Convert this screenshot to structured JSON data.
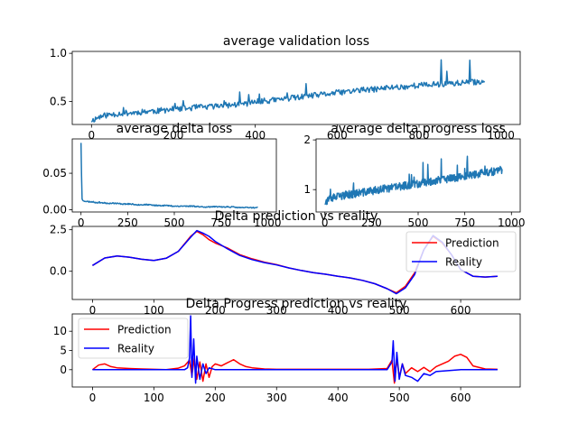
{
  "chart_data": [
    {
      "type": "line",
      "title": "average validation loss",
      "xlabel": "",
      "ylabel": "",
      "xlim": [
        -47,
        1047
      ],
      "ylim": [
        0.26,
        1.02
      ],
      "xticks": [
        0,
        200,
        400,
        600,
        800,
        1000
      ],
      "yticks": [
        0.5,
        1.0
      ],
      "ytick_labels": [
        "0.5",
        "1.0"
      ],
      "legend": null,
      "grid": false,
      "series": [
        {
          "color": "#1f77b4",
          "x": [
            0,
            20,
            40,
            60,
            80,
            100,
            120,
            140,
            160,
            180,
            200,
            220,
            240,
            260,
            280,
            300,
            320,
            340,
            360,
            380,
            400,
            420,
            440,
            460,
            480,
            500,
            520,
            540,
            560,
            580,
            600,
            620,
            640,
            660,
            680,
            700,
            720,
            740,
            760,
            780,
            800,
            820,
            840,
            860,
            880,
            900,
            920,
            940,
            960
          ],
          "y": [
            0.3,
            0.34,
            0.36,
            0.37,
            0.38,
            0.38,
            0.39,
            0.4,
            0.4,
            0.41,
            0.42,
            0.42,
            0.43,
            0.44,
            0.44,
            0.45,
            0.46,
            0.46,
            0.47,
            0.48,
            0.49,
            0.5,
            0.51,
            0.52,
            0.53,
            0.54,
            0.55,
            0.56,
            0.57,
            0.58,
            0.59,
            0.6,
            0.61,
            0.62,
            0.62,
            0.63,
            0.64,
            0.65,
            0.65,
            0.66,
            0.67,
            0.67,
            0.68,
            0.68,
            0.69,
            0.69,
            0.7,
            0.7,
            0.71
          ]
        }
      ]
    },
    {
      "type": "line",
      "title": "average delta loss",
      "xlabel": "",
      "ylabel": "",
      "xlim": [
        -47,
        1047
      ],
      "ylim": [
        -0.003,
        0.097
      ],
      "xticks": [
        0,
        250,
        500,
        750,
        1000
      ],
      "yticks": [
        0.0,
        0.05
      ],
      "ytick_labels": [
        "0.00",
        "0.05"
      ],
      "legend": null,
      "grid": false,
      "series": [
        {
          "color": "#1f77b4",
          "x": [
            0,
            5,
            10,
            20,
            40,
            60,
            80,
            100,
            140,
            180,
            220,
            260,
            300,
            350,
            400,
            450,
            500,
            550,
            600,
            650,
            700,
            750,
            800,
            850,
            900,
            950
          ],
          "y": [
            0.092,
            0.015,
            0.013,
            0.012,
            0.011,
            0.011,
            0.01,
            0.01,
            0.009,
            0.009,
            0.008,
            0.008,
            0.007,
            0.007,
            0.006,
            0.006,
            0.005,
            0.005,
            0.005,
            0.004,
            0.004,
            0.004,
            0.004,
            0.003,
            0.003,
            0.003
          ]
        }
      ]
    },
    {
      "type": "line",
      "title": "average delta progress loss",
      "xlabel": "",
      "ylabel": "",
      "xlim": [
        -47,
        1047
      ],
      "ylim": [
        0.55,
        2.02
      ],
      "xticks": [
        0,
        250,
        500,
        750,
        1000
      ],
      "yticks": [
        1,
        2
      ],
      "ytick_labels": [
        "1",
        "2"
      ],
      "legend": null,
      "grid": false,
      "series": [
        {
          "color": "#1f77b4",
          "x": [
            0,
            25,
            50,
            75,
            100,
            125,
            150,
            175,
            200,
            225,
            250,
            275,
            300,
            325,
            350,
            375,
            400,
            425,
            450,
            475,
            500,
            525,
            550,
            575,
            600,
            625,
            650,
            675,
            700,
            725,
            750,
            775,
            800,
            825,
            850,
            875,
            900,
            925,
            950
          ],
          "y": [
            0.75,
            0.8,
            0.84,
            0.86,
            0.88,
            0.9,
            0.91,
            0.93,
            0.94,
            0.96,
            0.97,
            0.99,
            1.0,
            1.02,
            1.03,
            1.05,
            1.06,
            1.08,
            1.09,
            1.11,
            1.12,
            1.14,
            1.15,
            1.17,
            1.18,
            1.2,
            1.21,
            1.23,
            1.24,
            1.26,
            1.27,
            1.29,
            1.3,
            1.32,
            1.33,
            1.35,
            1.36,
            1.38,
            1.4
          ]
        }
      ]
    },
    {
      "type": "line",
      "title": "Delta prediction vs reality",
      "xlabel": "",
      "ylabel": "",
      "xlim": [
        -33,
        697
      ],
      "ylim": [
        -1.7,
        2.7
      ],
      "xticks": [
        0,
        100,
        200,
        300,
        400,
        500,
        600
      ],
      "yticks": [
        0.0,
        2.5
      ],
      "ytick_labels": [
        "0.0",
        "2.5"
      ],
      "legend": {
        "placement": "upper right",
        "entries": [
          "Prediction",
          "Reality"
        ]
      },
      "grid": false,
      "series": [
        {
          "name": "Prediction",
          "color": "#ff0000",
          "x": [
            0,
            20,
            40,
            60,
            80,
            100,
            120,
            140,
            160,
            170,
            180,
            190,
            200,
            220,
            240,
            260,
            280,
            300,
            320,
            340,
            360,
            380,
            400,
            420,
            440,
            460,
            480,
            495,
            510,
            525,
            540,
            555,
            570,
            585,
            600,
            620,
            640,
            660
          ],
          "y": [
            0.35,
            0.8,
            0.92,
            0.85,
            0.72,
            0.65,
            0.78,
            1.2,
            2.1,
            2.4,
            2.2,
            1.9,
            1.7,
            1.4,
            1.0,
            0.75,
            0.55,
            0.4,
            0.2,
            0.05,
            -0.08,
            -0.18,
            -0.3,
            -0.4,
            -0.55,
            -0.75,
            -1.05,
            -1.3,
            -0.9,
            -0.1,
            1.3,
            2.1,
            1.7,
            1.0,
            0.1,
            -0.3,
            -0.35,
            -0.3
          ]
        },
        {
          "name": "Reality",
          "color": "#0000ff",
          "x": [
            0,
            20,
            40,
            60,
            80,
            100,
            120,
            140,
            160,
            170,
            180,
            190,
            200,
            220,
            240,
            260,
            280,
            300,
            320,
            340,
            360,
            380,
            400,
            420,
            440,
            460,
            480,
            495,
            510,
            525,
            540,
            555,
            570,
            585,
            600,
            620,
            640,
            660
          ],
          "y": [
            0.35,
            0.8,
            0.92,
            0.85,
            0.72,
            0.65,
            0.78,
            1.2,
            2.05,
            2.45,
            2.3,
            2.1,
            1.8,
            1.35,
            0.95,
            0.7,
            0.52,
            0.38,
            0.2,
            0.05,
            -0.08,
            -0.18,
            -0.3,
            -0.4,
            -0.55,
            -0.75,
            -1.05,
            -1.35,
            -1.0,
            -0.2,
            1.3,
            2.15,
            1.75,
            1.0,
            0.1,
            -0.3,
            -0.35,
            -0.3
          ]
        }
      ]
    },
    {
      "type": "line",
      "title": "Delta Progress prediction vs reality",
      "xlabel": "",
      "ylabel": "",
      "xlim": [
        -33,
        697
      ],
      "ylim": [
        -4.5,
        14.5
      ],
      "xticks": [
        0,
        100,
        200,
        300,
        400,
        500,
        600
      ],
      "yticks": [
        0,
        5,
        10
      ],
      "ytick_labels": [
        "0",
        "5",
        "10"
      ],
      "legend": {
        "placement": "upper left",
        "entries": [
          "Prediction",
          "Reality"
        ]
      },
      "grid": false,
      "series": [
        {
          "name": "Prediction",
          "color": "#ff0000",
          "x": [
            0,
            10,
            20,
            30,
            40,
            60,
            80,
            100,
            120,
            140,
            150,
            158,
            162,
            166,
            170,
            175,
            180,
            185,
            190,
            195,
            200,
            210,
            220,
            230,
            240,
            250,
            260,
            280,
            300,
            350,
            400,
            450,
            480,
            488,
            492,
            496,
            500,
            505,
            510,
            520,
            530,
            540,
            550,
            560,
            570,
            580,
            590,
            600,
            610,
            620,
            640,
            660
          ],
          "y": [
            0,
            1.2,
            1.5,
            0.8,
            0.5,
            0.3,
            0.2,
            0.1,
            0,
            0.4,
            1.0,
            2.5,
            -1.5,
            3.0,
            -2.5,
            2.0,
            -3.0,
            1.5,
            -2.0,
            0.8,
            1.5,
            1.0,
            1.8,
            2.6,
            1.5,
            0.8,
            0.5,
            0.2,
            0.1,
            0.1,
            0.1,
            0.1,
            0.3,
            2.5,
            -3.5,
            3.0,
            -2.0,
            1.5,
            -1.0,
            0.5,
            -0.5,
            0.6,
            -0.5,
            0.8,
            1.5,
            2.2,
            3.5,
            4.0,
            3.2,
            1.0,
            0.2,
            0.1
          ]
        },
        {
          "name": "Reality",
          "color": "#0000ff",
          "x": [
            0,
            100,
            150,
            155,
            158,
            160,
            162,
            165,
            168,
            170,
            175,
            180,
            185,
            190,
            200,
            250,
            300,
            400,
            480,
            488,
            490,
            493,
            496,
            500,
            505,
            510,
            520,
            530,
            540,
            550,
            560,
            600,
            660
          ],
          "y": [
            0,
            0,
            0,
            0.5,
            3.0,
            14.0,
            -2.0,
            8.0,
            -3.5,
            3.5,
            -2.5,
            1.5,
            -1.0,
            0.5,
            0,
            0,
            0,
            0,
            0,
            2.0,
            7.5,
            -3.0,
            4.5,
            -2.5,
            1.5,
            -1.5,
            -2.0,
            -3.0,
            -1.0,
            -1.5,
            -0.5,
            0,
            0
          ]
        }
      ]
    }
  ]
}
